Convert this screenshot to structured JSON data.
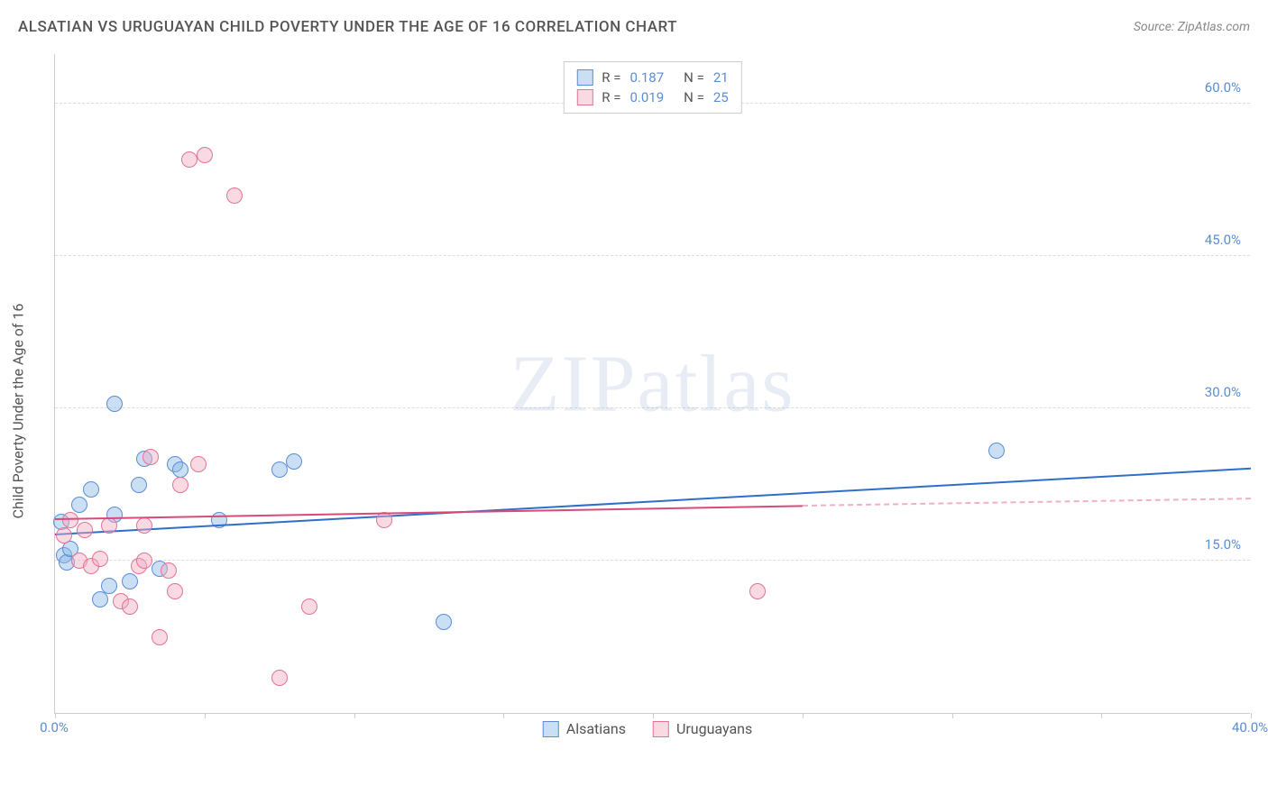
{
  "title": "ALSATIAN VS URUGUAYAN CHILD POVERTY UNDER THE AGE OF 16 CORRELATION CHART",
  "source": "Source: ZipAtlas.com",
  "ylabel": "Child Poverty Under the Age of 16",
  "watermark_bold": "ZIP",
  "watermark_thin": "atlas",
  "chart": {
    "type": "scatter",
    "background_color": "#ffffff",
    "grid_color": "#dddddd",
    "axis_color": "#cccccc",
    "tick_label_color": "#5b8dd6",
    "tick_fontsize": 15,
    "xlim": [
      0,
      40
    ],
    "ylim": [
      0,
      65
    ],
    "xticks": [
      0,
      5,
      10,
      15,
      20,
      25,
      30,
      35,
      40
    ],
    "yticks": [
      15,
      30,
      45,
      60
    ],
    "ytick_labels": [
      "15.0%",
      "30.0%",
      "45.0%",
      "60.0%"
    ],
    "xtick_labels_shown": {
      "0": "0.0%",
      "40": "40.0%"
    },
    "point_radius": 9,
    "point_stroke_width": 1.5,
    "series": [
      {
        "name": "Alsatians",
        "color_fill": "rgba(137, 183, 231, 0.45)",
        "color_stroke": "#5b8dd6",
        "R": "0.187",
        "N": "21",
        "trend": {
          "x1": 0,
          "y1": 17.5,
          "x2": 40,
          "y2": 24.0,
          "color": "#2f6fc8"
        },
        "points": [
          [
            0.2,
            18.8
          ],
          [
            0.3,
            15.5
          ],
          [
            0.4,
            14.8
          ],
          [
            0.5,
            16.2
          ],
          [
            0.8,
            20.5
          ],
          [
            1.2,
            22.0
          ],
          [
            1.5,
            11.2
          ],
          [
            1.8,
            12.5
          ],
          [
            2.0,
            19.5
          ],
          [
            2.0,
            30.5
          ],
          [
            2.5,
            13.0
          ],
          [
            2.8,
            22.5
          ],
          [
            3.0,
            25.0
          ],
          [
            3.5,
            14.2
          ],
          [
            4.0,
            24.5
          ],
          [
            4.2,
            24.0
          ],
          [
            5.5,
            19.0
          ],
          [
            7.5,
            24.0
          ],
          [
            8.0,
            24.8
          ],
          [
            13.0,
            9.0
          ],
          [
            31.5,
            25.8
          ]
        ]
      },
      {
        "name": "Uruguayans",
        "color_fill": "rgba(241, 173, 194, 0.45)",
        "color_stroke": "#e27396",
        "R": "0.019",
        "N": "25",
        "trend_solid": {
          "x1": 0,
          "y1": 19.0,
          "x2": 25,
          "y2": 20.3,
          "color": "#d84a7a"
        },
        "trend_dashed": {
          "x1": 25,
          "y1": 20.3,
          "x2": 40,
          "y2": 21.0,
          "color": "#f0b0c5"
        },
        "points": [
          [
            0.3,
            17.5
          ],
          [
            0.5,
            19.0
          ],
          [
            0.8,
            15.0
          ],
          [
            1.0,
            18.0
          ],
          [
            1.2,
            14.5
          ],
          [
            1.5,
            15.2
          ],
          [
            1.8,
            18.5
          ],
          [
            2.2,
            11.0
          ],
          [
            2.5,
            10.5
          ],
          [
            2.8,
            14.5
          ],
          [
            3.0,
            18.5
          ],
          [
            3.2,
            25.2
          ],
          [
            3.5,
            7.5
          ],
          [
            3.8,
            14.0
          ],
          [
            4.0,
            12.0
          ],
          [
            4.2,
            22.5
          ],
          [
            4.5,
            54.5
          ],
          [
            5.0,
            55.0
          ],
          [
            6.0,
            51.0
          ],
          [
            7.5,
            3.5
          ],
          [
            8.5,
            10.5
          ],
          [
            11.0,
            19.0
          ],
          [
            4.8,
            24.5
          ],
          [
            23.5,
            12.0
          ],
          [
            3.0,
            15.0
          ]
        ]
      }
    ]
  },
  "legend_top": {
    "rows": [
      {
        "swatch_fill": "rgba(137,183,231,0.45)",
        "swatch_stroke": "#5b8dd6",
        "R_label": "R =",
        "R_val": "0.187",
        "N_label": "N =",
        "N_val": "21"
      },
      {
        "swatch_fill": "rgba(241,173,194,0.45)",
        "swatch_stroke": "#e27396",
        "R_label": "R =",
        "R_val": "0.019",
        "N_label": "N =",
        "N_val": "25"
      }
    ]
  },
  "legend_bottom": {
    "items": [
      {
        "swatch_fill": "rgba(137,183,231,0.45)",
        "swatch_stroke": "#5b8dd6",
        "label": "Alsatians"
      },
      {
        "swatch_fill": "rgba(241,173,194,0.45)",
        "swatch_stroke": "#e27396",
        "label": "Uruguayans"
      }
    ]
  }
}
